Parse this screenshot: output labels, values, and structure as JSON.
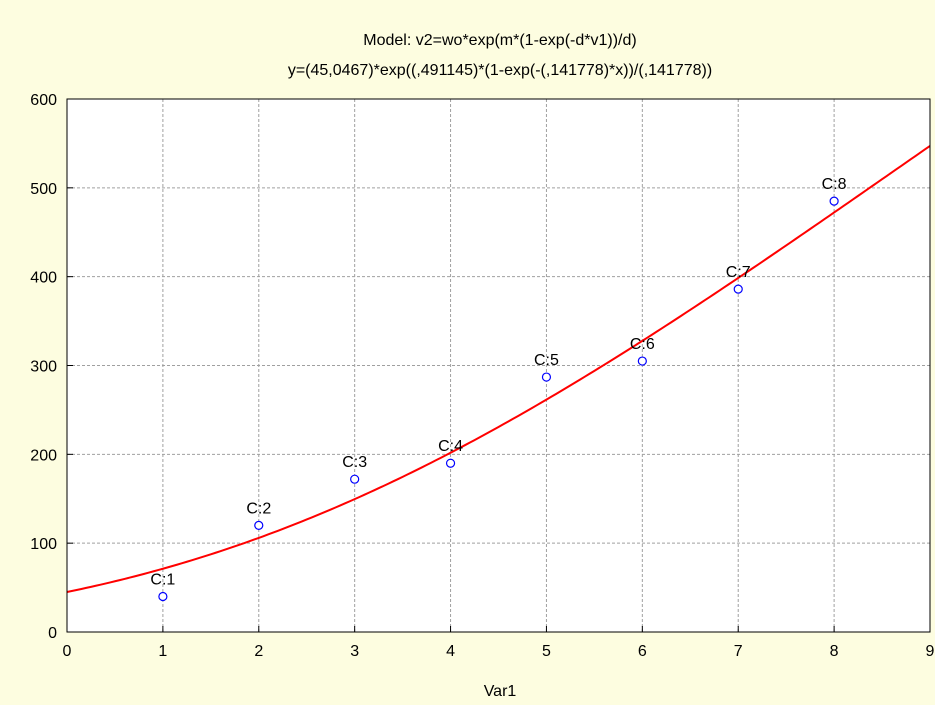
{
  "chart_data": {
    "type": "scatter",
    "title": "Model: v2=wo*exp(m*(1-exp(-d*v1))/d)",
    "subtitle": "y=(45,0467)*exp((,491145)*(1-exp(-(,141778)*x))/(,141778))",
    "xlabel": "Var1",
    "ylabel": "",
    "xlim": [
      0,
      9
    ],
    "ylim": [
      0,
      600
    ],
    "xticks": [
      "0",
      "1",
      "2",
      "3",
      "4",
      "5",
      "6",
      "7",
      "8",
      "9"
    ],
    "yticks": [
      "0",
      "100",
      "200",
      "300",
      "400",
      "500",
      "600"
    ],
    "grid": true,
    "series": [
      {
        "x": [
          1,
          2,
          3,
          4,
          5,
          6,
          7,
          8
        ],
        "y": [
          40,
          120,
          172,
          190,
          287,
          305,
          386,
          485
        ],
        "labels": [
          "C:1",
          "C:2",
          "C:3",
          "C:4",
          "C:5",
          "C:6",
          "C:7",
          "C:8"
        ],
        "marker": "circle-open",
        "color": "#0000ff"
      }
    ],
    "fit_curve": {
      "wo": 45.0467,
      "m": 0.491145,
      "d": 0.141778,
      "color": "#ff0000"
    },
    "colors": {
      "background": "#fdfde0",
      "plot_background": "#ffffff",
      "grid": "#a0a0a0",
      "points": "#0000ff",
      "curve": "#ff0000"
    }
  }
}
